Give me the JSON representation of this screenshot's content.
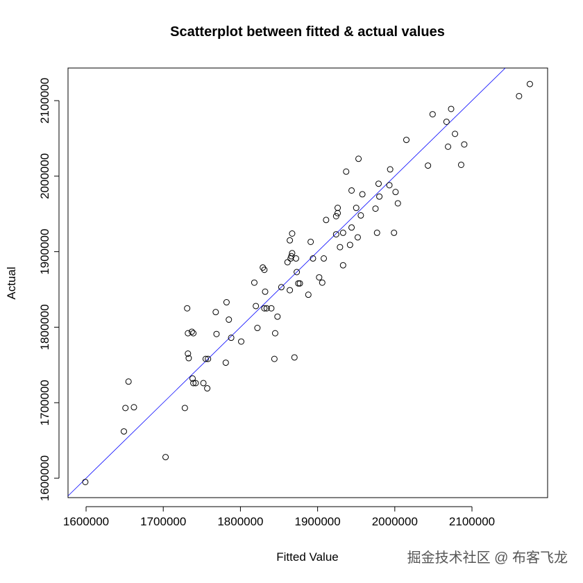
{
  "chart_data": {
    "type": "scatter",
    "title": "Scatterplot between fitted & actual values",
    "x_label": "Fitted Value",
    "y_label": "Actual",
    "x": [
      1599000,
      1649000,
      1651000,
      1655000,
      1662000,
      1703000,
      1728000,
      1731000,
      1732000,
      1733000,
      1732000,
      1737000,
      1739000,
      1738000,
      1739000,
      1742000,
      1752000,
      1755000,
      1757000,
      1758000,
      1768000,
      1769000,
      1781000,
      1782000,
      1785000,
      1788000,
      1801000,
      1818000,
      1820000,
      1822000,
      1829000,
      1831000,
      1832000,
      1831000,
      1834000,
      1840000,
      1845000,
      1844000,
      1848000,
      1853000,
      1861000,
      1864000,
      1864000,
      1865000,
      1866000,
      1867000,
      1867000,
      1870000,
      1872000,
      1873000,
      1875000,
      1877000,
      1888000,
      1891000,
      1894000,
      1902000,
      1906000,
      1908000,
      1911000,
      1924000,
      1924000,
      1926000,
      1926000,
      1929000,
      1933000,
      1933000,
      1937000,
      1942000,
      1944000,
      1944000,
      1950000,
      1952000,
      1953000,
      1956000,
      1958000,
      1975000,
      1977000,
      1979000,
      1980000,
      1993000,
      1994000,
      1999000,
      2001000,
      2004000,
      2015000,
      2043000,
      2049000,
      2067000,
      2069000,
      2073000,
      2078000,
      2086000,
      2090000,
      2161000,
      2175000
    ],
    "y": [
      1595000,
      1662000,
      1693000,
      1728000,
      1694000,
      1628000,
      1693000,
      1825000,
      1765000,
      1759000,
      1792000,
      1794000,
      1792000,
      1732000,
      1726000,
      1726000,
      1726000,
      1758000,
      1719000,
      1758000,
      1820000,
      1791000,
      1753000,
      1833000,
      1810000,
      1786000,
      1781000,
      1859000,
      1828000,
      1799000,
      1879000,
      1876000,
      1847000,
      1825000,
      1825000,
      1825000,
      1792000,
      1758000,
      1814000,
      1853000,
      1886000,
      1915000,
      1849000,
      1891000,
      1894000,
      1924000,
      1898000,
      1760000,
      1891000,
      1873000,
      1858000,
      1858000,
      1843000,
      1913000,
      1891000,
      1866000,
      1859000,
      1891000,
      1942000,
      1947000,
      1923000,
      1958000,
      1951000,
      1906000,
      1925000,
      1882000,
      2006000,
      1909000,
      1981000,
      1932000,
      1958000,
      1919000,
      2023000,
      1948000,
      1976000,
      1957000,
      1925000,
      1990000,
      1973000,
      1988000,
      2009000,
      1925000,
      1979000,
      1964000,
      2048000,
      2014000,
      2082000,
      2072000,
      2039000,
      2089000,
      2056000,
      2015000,
      2042000,
      2106000,
      2122000
    ],
    "color": "#000000",
    "xlim": [
      1576600,
      2198000
    ],
    "ylim": [
      1574300,
      2143200
    ],
    "xticks": [
      1600000,
      1700000,
      1800000,
      1900000,
      2000000,
      2100000
    ],
    "yticks": [
      1600000,
      1700000,
      1800000,
      1900000,
      2000000,
      2100000
    ],
    "reference_line": {
      "slope": 1,
      "intercept": 0,
      "color": "#0000ff"
    }
  },
  "watermark": "掘金技术社区 @ 布客飞龙"
}
